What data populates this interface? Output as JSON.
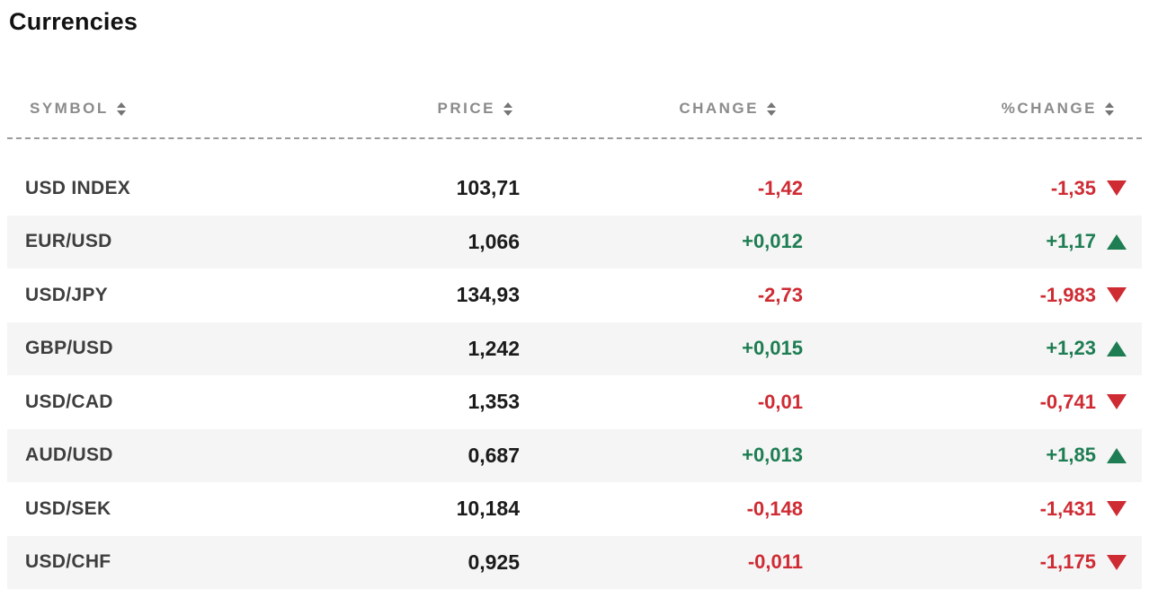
{
  "page": {
    "title": "Currencies"
  },
  "table": {
    "columns": [
      {
        "key": "symbol",
        "label": "SYMBOL",
        "sortable": true
      },
      {
        "key": "price",
        "label": "PRICE",
        "sortable": true
      },
      {
        "key": "change",
        "label": "CHANGE",
        "sortable": true
      },
      {
        "key": "pct_change",
        "label": "%CHANGE",
        "sortable": true
      }
    ],
    "rows": [
      {
        "symbol": "USD INDEX",
        "price": "103,71",
        "change": "-1,42",
        "change_dir": "down",
        "pct_change": "-1,35",
        "pct_dir": "down"
      },
      {
        "symbol": "EUR/USD",
        "price": "1,066",
        "change": "+0,012",
        "change_dir": "up",
        "pct_change": "+1,17",
        "pct_dir": "up"
      },
      {
        "symbol": "USD/JPY",
        "price": "134,93",
        "change": "-2,73",
        "change_dir": "down",
        "pct_change": "-1,983",
        "pct_dir": "down"
      },
      {
        "symbol": "GBP/USD",
        "price": "1,242",
        "change": "+0,015",
        "change_dir": "up",
        "pct_change": "+1,23",
        "pct_dir": "up"
      },
      {
        "symbol": "USD/CAD",
        "price": "1,353",
        "change": "-0,01",
        "change_dir": "down",
        "pct_change": "-0,741",
        "pct_dir": "down"
      },
      {
        "symbol": "AUD/USD",
        "price": "0,687",
        "change": "+0,013",
        "change_dir": "up",
        "pct_change": "+1,85",
        "pct_dir": "up"
      },
      {
        "symbol": "USD/SEK",
        "price": "10,184",
        "change": "-0,148",
        "change_dir": "down",
        "pct_change": "-1,431",
        "pct_dir": "down"
      },
      {
        "symbol": "USD/CHF",
        "price": "0,925",
        "change": "-0,011",
        "change_dir": "down",
        "pct_change": "-1,175",
        "pct_dir": "down"
      }
    ],
    "colors": {
      "up": "#1e7d52",
      "down": "#ce2b33",
      "header_text": "#8b8b8b",
      "sort_arrow": "#757575",
      "symbol_text": "#3e3e3e",
      "price_text": "#1b1b1b",
      "row_alt_bg": "#f5f5f5",
      "divider": "#9b9b9b",
      "title": "#121212"
    }
  }
}
